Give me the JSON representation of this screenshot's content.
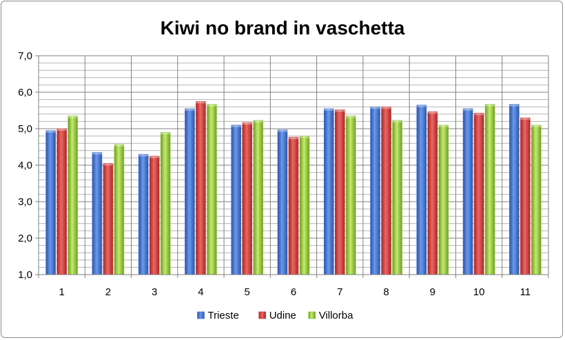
{
  "chart_data": {
    "type": "bar",
    "title": "Kiwi no brand in vaschetta",
    "xlabel": "",
    "ylabel": "",
    "categories": [
      "1",
      "2",
      "3",
      "4",
      "5",
      "6",
      "7",
      "8",
      "9",
      "10",
      "11"
    ],
    "ylim": [
      1.0,
      7.0
    ],
    "ytick_labels": [
      "1,0",
      "2,0",
      "3,0",
      "4,0",
      "5,0",
      "6,0",
      "7,0"
    ],
    "grid": true,
    "legend_position": "bottom",
    "series": [
      {
        "name": "Trieste",
        "color": "#3f73d2",
        "values": [
          4.95,
          4.35,
          4.3,
          5.55,
          5.1,
          4.97,
          5.55,
          5.6,
          5.65,
          5.55,
          5.67
        ]
      },
      {
        "name": "Udine",
        "color": "#d03b39",
        "values": [
          5.0,
          4.05,
          4.25,
          5.75,
          5.17,
          4.77,
          5.52,
          5.6,
          5.47,
          5.43,
          5.3
        ]
      },
      {
        "name": "Villorba",
        "color": "#95c83b",
        "values": [
          5.35,
          4.57,
          4.9,
          5.67,
          5.23,
          4.8,
          5.35,
          5.23,
          5.1,
          5.67,
          5.1
        ]
      }
    ]
  }
}
